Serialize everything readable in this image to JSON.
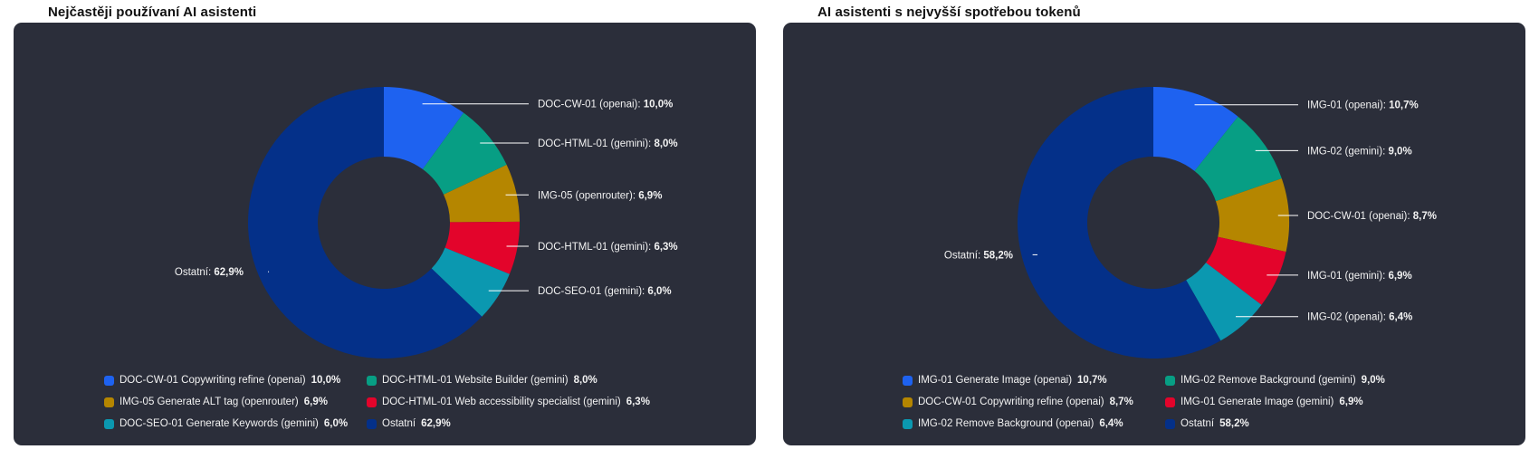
{
  "colors": {
    "blue": "#1e62f0",
    "teal": "#079e84",
    "gold": "#b58600",
    "red": "#e3042b",
    "cyan": "#0b98b0",
    "navy": "#043089",
    "panel": "#2b2e3a"
  },
  "chart_data": [
    {
      "type": "pie",
      "variant": "donut",
      "title": "Nejčastěji používaní AI asistenti",
      "unit": "%",
      "series": [
        {
          "label": "DOC-CW-01 (openai)",
          "legend": "DOC-CW-01 Copywriting refine (openai)",
          "value": 10.0,
          "display": "10,0%",
          "color": "blue"
        },
        {
          "label": "DOC-HTML-01 (gemini)",
          "legend": "DOC-HTML-01 Website Builder (gemini)",
          "value": 8.0,
          "display": "8,0%",
          "color": "teal"
        },
        {
          "label": "IMG-05 (openrouter)",
          "legend": "IMG-05 Generate ALT tag (openrouter)",
          "value": 6.9,
          "display": "6,9%",
          "color": "gold"
        },
        {
          "label": "DOC-HTML-01 (gemini)",
          "legend": "DOC-HTML-01 Web accessibility specialist (gemini)",
          "value": 6.3,
          "display": "6,3%",
          "color": "red"
        },
        {
          "label": "DOC-SEO-01 (gemini)",
          "legend": "DOC-SEO-01 Generate Keywords (gemini)",
          "value": 6.0,
          "display": "6,0%",
          "color": "cyan"
        },
        {
          "label": "Ostatní",
          "legend": "Ostatní",
          "value": 62.9,
          "display": "62,9%",
          "color": "navy"
        }
      ]
    },
    {
      "type": "pie",
      "variant": "donut",
      "title": "AI asistenti s nejvyšší spotřebou tokenů",
      "unit": "%",
      "series": [
        {
          "label": "IMG-01 (openai)",
          "legend": "IMG-01 Generate Image (openai)",
          "value": 10.7,
          "display": "10,7%",
          "color": "blue"
        },
        {
          "label": "IMG-02 (gemini)",
          "legend": "IMG-02 Remove Background (gemini)",
          "value": 9.0,
          "display": "9,0%",
          "color": "teal"
        },
        {
          "label": "DOC-CW-01 (openai)",
          "legend": "DOC-CW-01 Copywriting refine (openai)",
          "value": 8.7,
          "display": "8,7%",
          "color": "gold"
        },
        {
          "label": "IMG-01 (gemini)",
          "legend": "IMG-01 Generate Image (gemini)",
          "value": 6.9,
          "display": "6,9%",
          "color": "red"
        },
        {
          "label": "IMG-02 (openai)",
          "legend": "IMG-02 Remove Background (openai)",
          "value": 6.4,
          "display": "6,4%",
          "color": "cyan"
        },
        {
          "label": "Ostatní",
          "legend": "Ostatní",
          "value": 58.2,
          "display": "58,2%",
          "color": "navy"
        }
      ]
    }
  ]
}
